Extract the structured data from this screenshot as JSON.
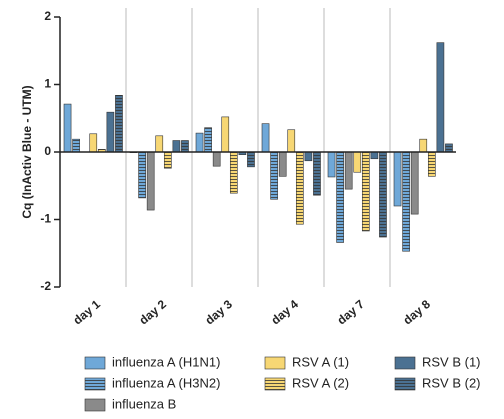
{
  "chart_data": {
    "type": "bar",
    "y_label": "Cq  (InActiv Blue - UTM)",
    "categories": [
      "day 1",
      "day 2",
      "day 3",
      "day 4",
      "day 7",
      "day 8"
    ],
    "series": [
      {
        "name": "influenza A (H1N1)",
        "color": "#6fa8d8",
        "hatch": false,
        "values": [
          0.71,
          -0.01,
          0.28,
          0.42,
          -0.37,
          -0.8
        ]
      },
      {
        "name": "influenza A (H3N2)",
        "color": "#6fa8d8",
        "hatch": true,
        "values": [
          0.19,
          -0.68,
          0.36,
          -0.7,
          -1.34,
          -1.47
        ]
      },
      {
        "name": "influenza B",
        "color": "#8a8a8a",
        "hatch": false,
        "values": [
          0,
          -0.86,
          -0.21,
          -0.36,
          -0.55,
          -0.92
        ]
      },
      {
        "name": "RSV A (1)",
        "color": "#f7d774",
        "hatch": false,
        "values": [
          0.27,
          0.24,
          0.52,
          0.33,
          -0.3,
          0.19
        ]
      },
      {
        "name": "RSV A (2)",
        "color": "#f7d774",
        "hatch": true,
        "values": [
          0.04,
          -0.24,
          -0.61,
          -1.07,
          -1.17,
          -0.36
        ]
      },
      {
        "name": "RSV B (1)",
        "color": "#4b7192",
        "hatch": false,
        "values": [
          0.59,
          0.17,
          -0.04,
          -0.13,
          -0.1,
          1.62
        ]
      },
      {
        "name": "RSV B (2)",
        "color": "#4b7192",
        "hatch": true,
        "values": [
          0.84,
          0.17,
          -0.22,
          -0.64,
          -1.26,
          0.12
        ]
      }
    ],
    "ylim": [
      -2,
      2
    ],
    "yticks": [
      -2,
      -1,
      0,
      1,
      2
    ],
    "grid": true
  }
}
